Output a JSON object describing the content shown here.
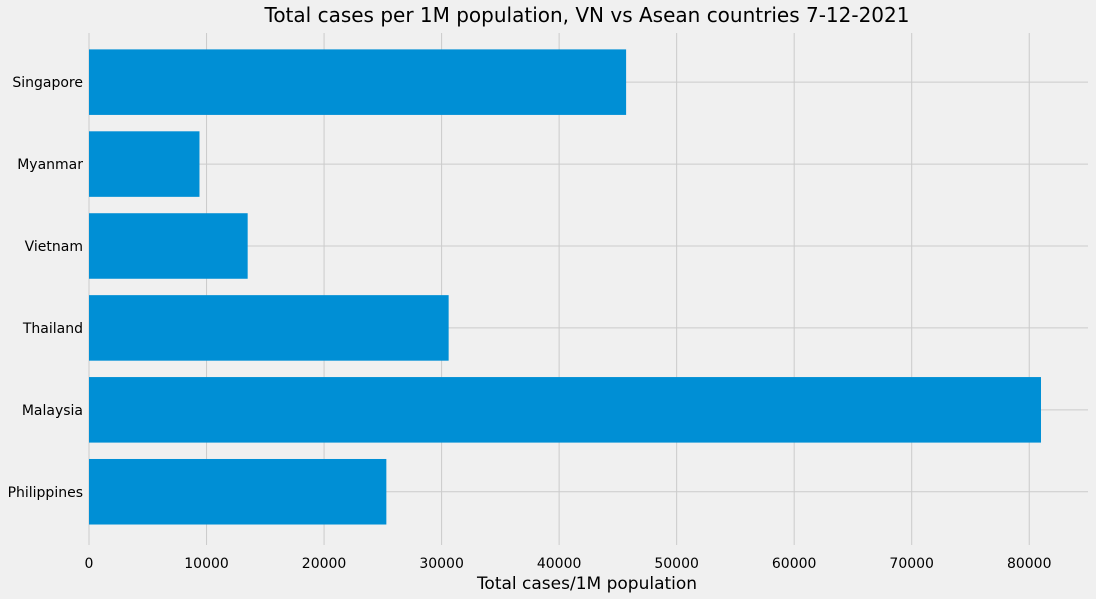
{
  "chart_data": {
    "type": "bar",
    "orientation": "horizontal",
    "title": "Total cases per 1M population, VN vs Asean countries 7-12-2021",
    "xlabel": "Total cases/1M population",
    "ylabel": "",
    "categories": [
      "Singapore",
      "Myanmar",
      "Vietnam",
      "Thailand",
      "Malaysia",
      "Philippines"
    ],
    "values": [
      45700,
      9400,
      13500,
      30600,
      81000,
      25300
    ],
    "xlim": [
      0,
      85000
    ],
    "xticks": [
      0,
      10000,
      20000,
      30000,
      40000,
      50000,
      60000,
      70000,
      80000
    ],
    "xtick_labels": [
      "0",
      "10000",
      "20000",
      "30000",
      "40000",
      "50000",
      "60000",
      "70000",
      "80000"
    ],
    "grid": true,
    "colors": {
      "bar": "#008fd5",
      "background": "#f0f0f0",
      "grid": "#cbcbcb"
    }
  }
}
